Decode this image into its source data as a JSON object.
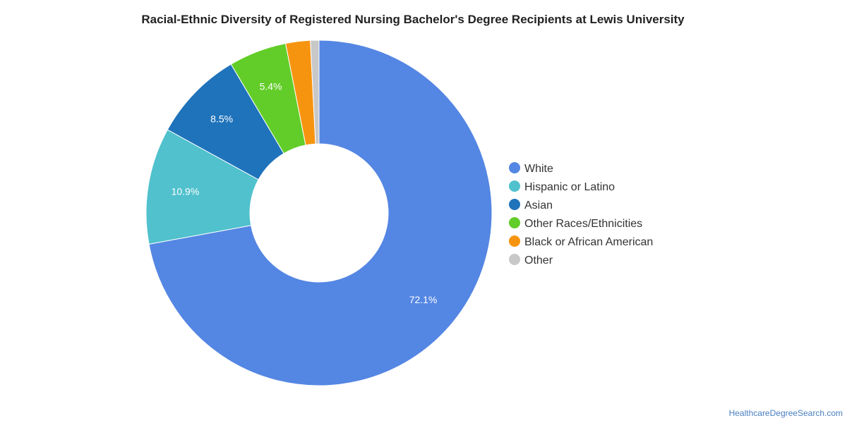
{
  "chart_data": {
    "type": "pie",
    "title": "Racial-Ethnic Diversity of Registered Nursing Bachelor's Degree Recipients at Lewis University",
    "legend_position": "right",
    "donut": true,
    "slices": [
      {
        "name": "White",
        "value": 72.1,
        "label": "72.1%",
        "color": "#5486e3"
      },
      {
        "name": "Hispanic or Latino",
        "value": 10.9,
        "label": "10.9%",
        "color": "#50c1cd"
      },
      {
        "name": "Asian",
        "value": 8.5,
        "label": "8.5%",
        "color": "#1f73bb"
      },
      {
        "name": "Other Races/Ethnicities",
        "value": 5.4,
        "label": "5.4%",
        "color": "#62cd28"
      },
      {
        "name": "Black or African American",
        "value": 2.3,
        "label": "",
        "color": "#f7940f"
      },
      {
        "name": "Other",
        "value": 0.8,
        "label": "",
        "color": "#c8c8c8"
      }
    ]
  },
  "footer": {
    "source": "HealthcareDegreeSearch.com"
  }
}
